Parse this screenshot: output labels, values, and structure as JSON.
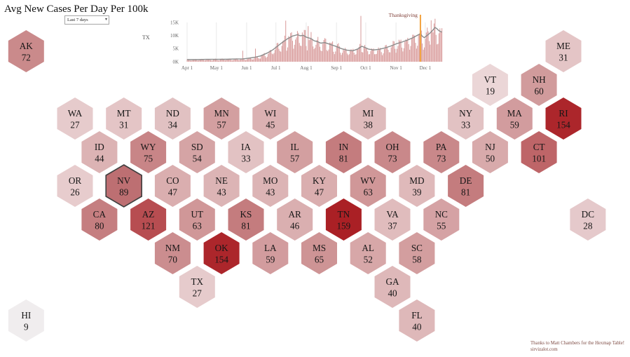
{
  "page": {
    "title": "Avg New Cases Per Day Per 100k",
    "background_color": "#ffffff"
  },
  "controls": {
    "date_range_dropdown": {
      "value": "Last 7 days"
    }
  },
  "credits": {
    "line1": "Thanks to Matt Chambers for the Hexmap Table!",
    "line2": "sirvizalot.com",
    "color": "#7d4a42"
  },
  "chart_data": {
    "type": "bar",
    "series_label": "TX",
    "description": "Daily new cases bars with 7-day average line, values in thousands (K)",
    "days": 262,
    "x_ticks": [
      {
        "label": "Apr 1",
        "day": 0
      },
      {
        "label": "May 1",
        "day": 30
      },
      {
        "label": "Jun 1",
        "day": 61
      },
      {
        "label": "Jul 1",
        "day": 91
      },
      {
        "label": "Aug 1",
        "day": 122
      },
      {
        "label": "Sep 1",
        "day": 153
      },
      {
        "label": "Oct 1",
        "day": 183
      },
      {
        "label": "Nov 1",
        "day": 214
      },
      {
        "label": "Dec 1",
        "day": 244
      }
    ],
    "y_ticks": [
      {
        "label": "0K",
        "value": 0
      },
      {
        "label": "5K",
        "value": 5
      },
      {
        "label": "10K",
        "value": 10
      },
      {
        "label": "15K",
        "value": 15
      }
    ],
    "avg_line_anchors": [
      [
        0,
        0.8
      ],
      [
        10,
        0.8
      ],
      [
        20,
        0.9
      ],
      [
        30,
        0.9
      ],
      [
        40,
        0.95
      ],
      [
        50,
        1.05
      ],
      [
        57,
        1.1
      ],
      [
        61,
        1.25
      ],
      [
        68,
        1.6
      ],
      [
        75,
        2.2
      ],
      [
        82,
        3.3
      ],
      [
        88,
        4.6
      ],
      [
        91,
        5.5
      ],
      [
        97,
        7.2
      ],
      [
        103,
        8.8
      ],
      [
        108,
        9.8
      ],
      [
        113,
        10.3
      ],
      [
        116,
        9.9
      ],
      [
        119,
        10.1
      ],
      [
        122,
        9.4
      ],
      [
        127,
        8.8
      ],
      [
        130,
        8.0
      ],
      [
        134,
        7.6
      ],
      [
        137,
        7.1
      ],
      [
        141,
        7.3
      ],
      [
        145,
        6.8
      ],
      [
        149,
        6.3
      ],
      [
        153,
        5.8
      ],
      [
        158,
        5.0
      ],
      [
        164,
        4.4
      ],
      [
        170,
        4.2
      ],
      [
        175,
        4.9
      ],
      [
        179,
        5.9
      ],
      [
        182,
        5.5
      ],
      [
        186,
        4.8
      ],
      [
        191,
        4.5
      ],
      [
        196,
        4.7
      ],
      [
        202,
        5.2
      ],
      [
        208,
        5.9
      ],
      [
        214,
        6.8
      ],
      [
        220,
        7.5
      ],
      [
        226,
        8.3
      ],
      [
        231,
        9.1
      ],
      [
        236,
        10.1
      ],
      [
        239,
        10.7
      ],
      [
        241,
        9.7
      ],
      [
        243,
        9.2
      ],
      [
        246,
        10.1
      ],
      [
        249,
        11.0
      ],
      [
        252,
        12.2
      ],
      [
        254,
        13.1
      ],
      [
        256,
        12.6
      ],
      [
        258,
        11.8
      ],
      [
        261,
        11.3
      ]
    ],
    "outlier_bars": {
      "57": 4.2,
      "70": 5.0,
      "101": 15.7,
      "124": 13.6,
      "178": 17.5,
      "250": 15.8,
      "253": 14.6
    },
    "annotation": {
      "label": "Thanksgiving",
      "day": 239,
      "line_color": "#f2a23e",
      "text_color": "#7d3b33"
    },
    "bar_color": "#d48d8d",
    "line_color": "#8c8c8c",
    "gridline_color": "#e3e3e3",
    "axis_text_color": "#666666"
  },
  "hexmap": {
    "selected_state": "NV",
    "selected_border_color": "#3f3f3f",
    "text_color": "#161616",
    "states": [
      {
        "abbr": "AK",
        "value": 72,
        "col": 0,
        "row": 0,
        "color": "#ca8a8b"
      },
      {
        "abbr": "ME",
        "value": 31,
        "col": 22,
        "row": 0,
        "color": "#e4c5c6"
      },
      {
        "abbr": "VT",
        "value": 19,
        "col": 19,
        "row": 1,
        "color": "#ebd6d7"
      },
      {
        "abbr": "NH",
        "value": 60,
        "col": 21,
        "row": 1,
        "color": "#d19b9c"
      },
      {
        "abbr": "WA",
        "value": 27,
        "col": 2,
        "row": 2,
        "color": "#e6cbcc"
      },
      {
        "abbr": "MT",
        "value": 31,
        "col": 4,
        "row": 2,
        "color": "#e4c5c6"
      },
      {
        "abbr": "ND",
        "value": 34,
        "col": 6,
        "row": 2,
        "color": "#e1c1c2"
      },
      {
        "abbr": "MN",
        "value": 57,
        "col": 8,
        "row": 2,
        "color": "#d39fa0"
      },
      {
        "abbr": "WI",
        "value": 45,
        "col": 10,
        "row": 2,
        "color": "#dbb1b2"
      },
      {
        "abbr": "MI",
        "value": 38,
        "col": 14,
        "row": 2,
        "color": "#dfbbbc"
      },
      {
        "abbr": "NY",
        "value": 33,
        "col": 18,
        "row": 2,
        "color": "#e2c2c3"
      },
      {
        "abbr": "MA",
        "value": 59,
        "col": 20,
        "row": 2,
        "color": "#d29c9e"
      },
      {
        "abbr": "RI",
        "value": 154,
        "col": 22,
        "row": 2,
        "color": "#ac262b"
      },
      {
        "abbr": "ID",
        "value": 44,
        "col": 3,
        "row": 3,
        "color": "#dcb3b4"
      },
      {
        "abbr": "WY",
        "value": 75,
        "col": 5,
        "row": 3,
        "color": "#c88587"
      },
      {
        "abbr": "SD",
        "value": 54,
        "col": 7,
        "row": 3,
        "color": "#d5a4a5"
      },
      {
        "abbr": "IA",
        "value": 33,
        "col": 9,
        "row": 3,
        "color": "#e2c2c3"
      },
      {
        "abbr": "IL",
        "value": 57,
        "col": 11,
        "row": 3,
        "color": "#d39fa0"
      },
      {
        "abbr": "IN",
        "value": 81,
        "col": 13,
        "row": 3,
        "color": "#c47c7e"
      },
      {
        "abbr": "OH",
        "value": 73,
        "col": 15,
        "row": 3,
        "color": "#c9888a"
      },
      {
        "abbr": "PA",
        "value": 73,
        "col": 17,
        "row": 3,
        "color": "#c9888a"
      },
      {
        "abbr": "NJ",
        "value": 50,
        "col": 19,
        "row": 3,
        "color": "#d8aaab"
      },
      {
        "abbr": "CT",
        "value": 101,
        "col": 21,
        "row": 3,
        "color": "#be6568"
      },
      {
        "abbr": "OR",
        "value": 26,
        "col": 2,
        "row": 4,
        "color": "#e7cccd"
      },
      {
        "abbr": "NV",
        "value": 89,
        "col": 4,
        "row": 4,
        "color": "#bd6f72"
      },
      {
        "abbr": "CO",
        "value": 47,
        "col": 6,
        "row": 4,
        "color": "#daaeaf"
      },
      {
        "abbr": "NE",
        "value": 43,
        "col": 8,
        "row": 4,
        "color": "#dcb4b5"
      },
      {
        "abbr": "MO",
        "value": 43,
        "col": 10,
        "row": 4,
        "color": "#dcb4b5"
      },
      {
        "abbr": "KY",
        "value": 47,
        "col": 12,
        "row": 4,
        "color": "#daaeaf"
      },
      {
        "abbr": "WV",
        "value": 63,
        "col": 14,
        "row": 4,
        "color": "#d09798"
      },
      {
        "abbr": "MD",
        "value": 39,
        "col": 16,
        "row": 4,
        "color": "#dfb9ba"
      },
      {
        "abbr": "DE",
        "value": 81,
        "col": 18,
        "row": 4,
        "color": "#c47c7e"
      },
      {
        "abbr": "CA",
        "value": 80,
        "col": 3,
        "row": 5,
        "color": "#c57e80"
      },
      {
        "abbr": "AZ",
        "value": 121,
        "col": 5,
        "row": 5,
        "color": "#b74d51"
      },
      {
        "abbr": "UT",
        "value": 63,
        "col": 7,
        "row": 5,
        "color": "#d09798"
      },
      {
        "abbr": "KS",
        "value": 81,
        "col": 9,
        "row": 5,
        "color": "#c47c7e"
      },
      {
        "abbr": "AR",
        "value": 46,
        "col": 11,
        "row": 5,
        "color": "#daafb0"
      },
      {
        "abbr": "TN",
        "value": 159,
        "col": 13,
        "row": 5,
        "color": "#aa2025"
      },
      {
        "abbr": "VA",
        "value": 37,
        "col": 15,
        "row": 5,
        "color": "#e0bcbd"
      },
      {
        "abbr": "NC",
        "value": 55,
        "col": 17,
        "row": 5,
        "color": "#d5a2a4"
      },
      {
        "abbr": "DC",
        "value": 28,
        "col": 23,
        "row": 5,
        "color": "#e5c9cb"
      },
      {
        "abbr": "NM",
        "value": 70,
        "col": 6,
        "row": 6,
        "color": "#cb8d8f"
      },
      {
        "abbr": "OK",
        "value": 154,
        "col": 8,
        "row": 6,
        "color": "#ac262b"
      },
      {
        "abbr": "LA",
        "value": 59,
        "col": 10,
        "row": 6,
        "color": "#d29c9e"
      },
      {
        "abbr": "MS",
        "value": 65,
        "col": 12,
        "row": 6,
        "color": "#ce9495"
      },
      {
        "abbr": "AL",
        "value": 52,
        "col": 14,
        "row": 6,
        "color": "#d7a7a8"
      },
      {
        "abbr": "SC",
        "value": 58,
        "col": 16,
        "row": 6,
        "color": "#d39e9f"
      },
      {
        "abbr": "TX",
        "value": 27,
        "col": 7,
        "row": 7,
        "color": "#e6cbcc"
      },
      {
        "abbr": "GA",
        "value": 40,
        "col": 15,
        "row": 7,
        "color": "#deb8b9"
      },
      {
        "abbr": "HI",
        "value": 9,
        "col": 0,
        "row": 8,
        "color": "#f0edee"
      },
      {
        "abbr": "FL",
        "value": 40,
        "col": 16,
        "row": 8,
        "color": "#deb8b9"
      }
    ]
  }
}
